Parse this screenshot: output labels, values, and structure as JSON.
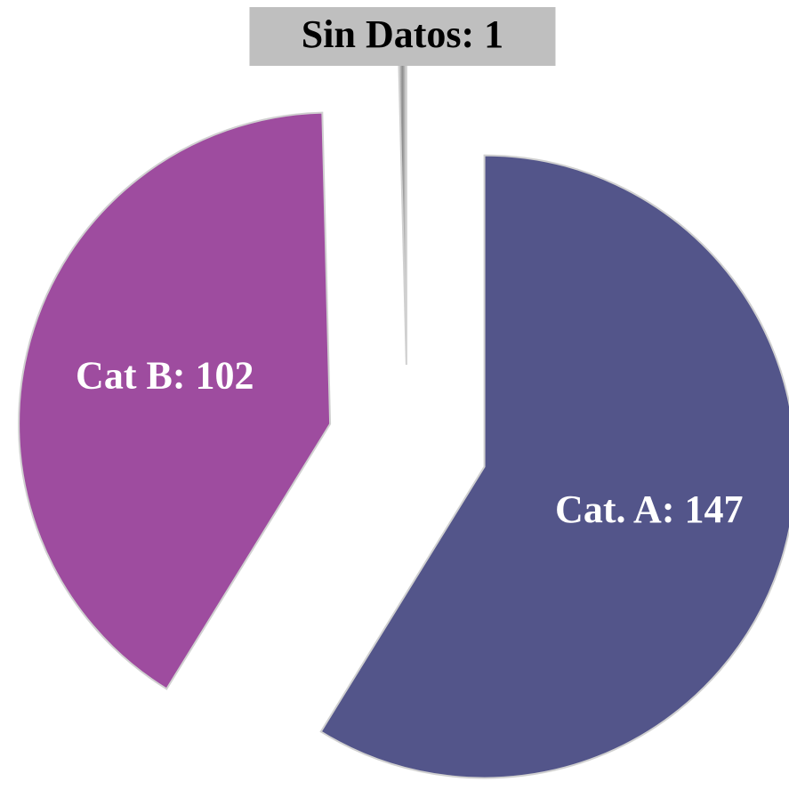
{
  "chart_data": {
    "type": "pie",
    "values": [
      147,
      102,
      1
    ],
    "value_labels": [
      "Cat. A: 147",
      "Cat B: 102",
      "Sin Datos: 1"
    ],
    "colors": [
      "#53558a",
      "#9e4c9f",
      "#a6a6a6"
    ],
    "exploded": true
  }
}
